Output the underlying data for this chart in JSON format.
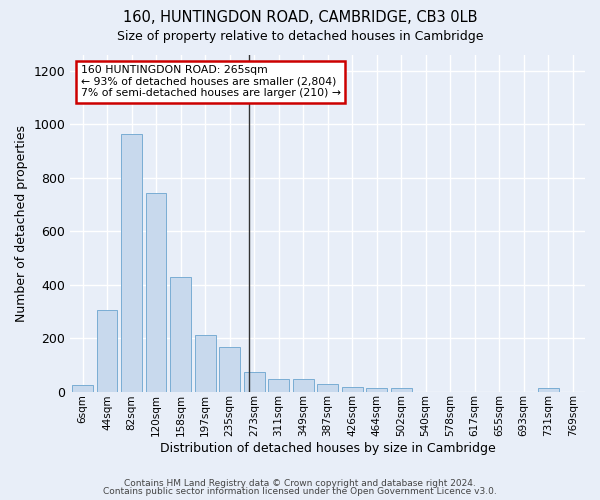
{
  "title1": "160, HUNTINGDON ROAD, CAMBRIDGE, CB3 0LB",
  "title2": "Size of property relative to detached houses in Cambridge",
  "xlabel": "Distribution of detached houses by size in Cambridge",
  "ylabel": "Number of detached properties",
  "bar_labels": [
    "6sqm",
    "44sqm",
    "82sqm",
    "120sqm",
    "158sqm",
    "197sqm",
    "235sqm",
    "273sqm",
    "311sqm",
    "349sqm",
    "387sqm",
    "426sqm",
    "464sqm",
    "502sqm",
    "540sqm",
    "578sqm",
    "617sqm",
    "655sqm",
    "693sqm",
    "731sqm",
    "769sqm"
  ],
  "bar_values": [
    25,
    305,
    965,
    745,
    430,
    210,
    165,
    75,
    48,
    48,
    30,
    18,
    12,
    12,
    0,
    0,
    0,
    0,
    0,
    12,
    0
  ],
  "bar_color": "#c8d9ed",
  "bar_edge_color": "#7aadd4",
  "bg_color": "#e8eef8",
  "grid_color": "#ffffff",
  "annotation_text_line1": "160 HUNTINGDON ROAD: 265sqm",
  "annotation_text_line2": "← 93% of detached houses are smaller (2,804)",
  "annotation_text_line3": "7% of semi-detached houses are larger (210) →",
  "annotation_box_color": "#ffffff",
  "annotation_border_color": "#cc0000",
  "vline_color": "#333333",
  "ylim": [
    0,
    1260
  ],
  "yticks": [
    0,
    200,
    400,
    600,
    800,
    1000,
    1200
  ],
  "footer1": "Contains HM Land Registry data © Crown copyright and database right 2024.",
  "footer2": "Contains public sector information licensed under the Open Government Licence v3.0."
}
